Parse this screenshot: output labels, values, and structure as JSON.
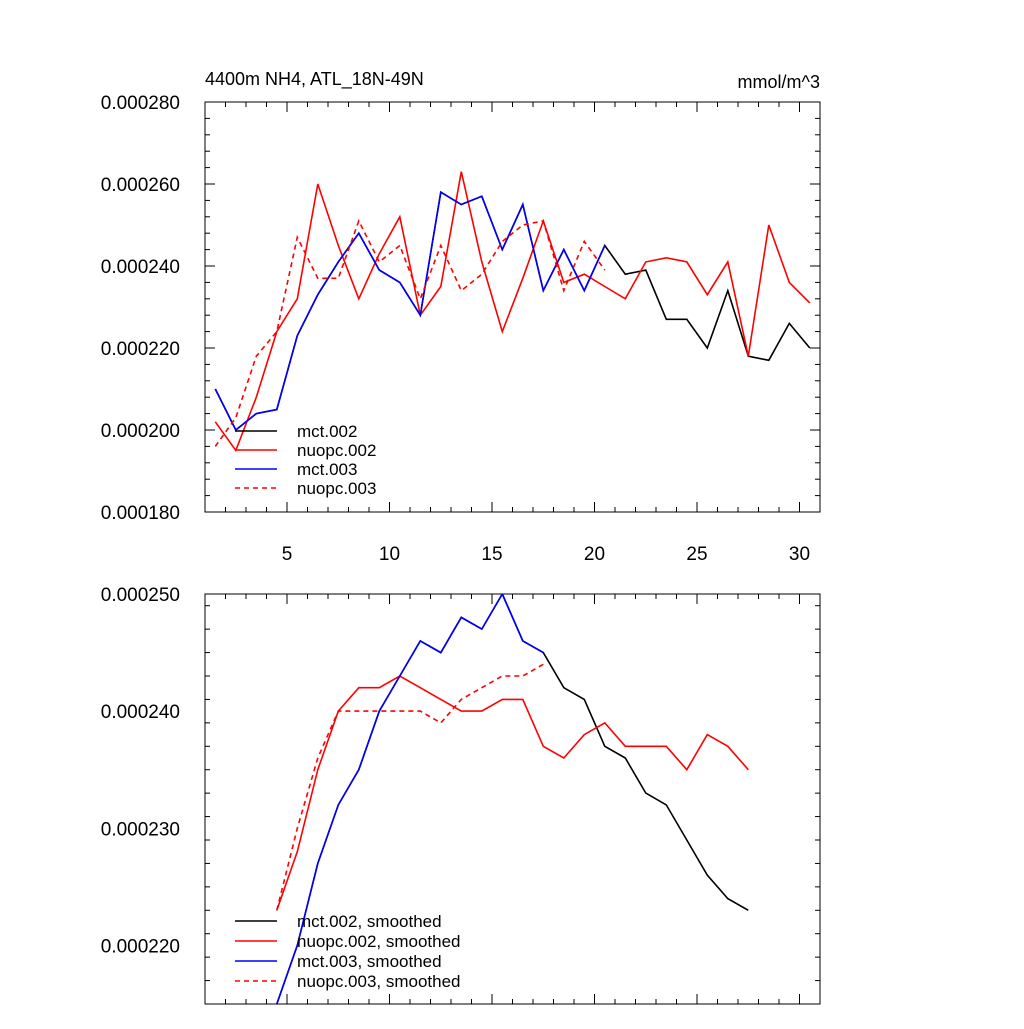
{
  "chart_data": [
    {
      "type": "line",
      "title": "4400m NH4, ATL_18N-49N",
      "units": "mmol/m^3",
      "xlim": [
        1,
        31
      ],
      "ylim": [
        0.00018,
        0.00028
      ],
      "xticks": [
        5,
        10,
        15,
        20,
        25,
        30
      ],
      "xtick_labels": [
        "5",
        "10",
        "15",
        "20",
        "25",
        "30"
      ],
      "yticks": [
        0.00018,
        0.0002,
        0.00022,
        0.00024,
        0.00026,
        0.00028
      ],
      "ytick_labels": [
        "0.000180",
        "0.000200",
        "0.000220",
        "0.000240",
        "0.000260",
        "0.000280"
      ],
      "legend": [
        "mct.002",
        "nuopc.002",
        "mct.003",
        "nuopc.003"
      ],
      "series": [
        {
          "name": "mct.002",
          "color": "#000000",
          "dash": "solid",
          "x": [
            1.5,
            2.5,
            3.5,
            4.5,
            5.5,
            6.5,
            7.5,
            8.5,
            9.5,
            10.5,
            11.5,
            12.5,
            13.5,
            14.5,
            15.5,
            16.5,
            17.5,
            18.5,
            19.5,
            20.5,
            21.5,
            22.5,
            23.5,
            24.5,
            25.5,
            26.5,
            27.5,
            28.5,
            29.5,
            30.5
          ],
          "values": [
            0.00021,
            0.0002,
            0.000204,
            0.000205,
            0.000223,
            0.000233,
            0.000241,
            0.000248,
            0.000239,
            0.000236,
            0.000228,
            0.000258,
            0.000255,
            0.000257,
            0.000244,
            0.000255,
            0.000234,
            0.000244,
            0.000234,
            0.000245,
            0.000238,
            0.000239,
            0.000227,
            0.000227,
            0.00022,
            0.000234,
            0.000218,
            0.000217,
            0.000226,
            0.00022
          ]
        },
        {
          "name": "nuopc.002",
          "color": "#ff0000",
          "dash": "solid",
          "x": [
            1.5,
            2.5,
            3.5,
            4.5,
            5.5,
            6.5,
            7.5,
            8.5,
            9.5,
            10.5,
            11.5,
            12.5,
            13.5,
            14.5,
            15.5,
            16.5,
            17.5,
            18.5,
            19.5,
            20.5,
            21.5,
            22.5,
            23.5,
            24.5,
            25.5,
            26.5,
            27.5,
            28.5,
            29.5,
            30.5
          ],
          "values": [
            0.000202,
            0.000195,
            0.000208,
            0.000224,
            0.000232,
            0.00026,
            0.000245,
            0.000232,
            0.000243,
            0.000252,
            0.000228,
            0.000235,
            0.000263,
            0.000241,
            0.000224,
            0.000237,
            0.000251,
            0.000236,
            0.000238,
            0.000235,
            0.000232,
            0.000241,
            0.000242,
            0.000241,
            0.000233,
            0.000241,
            0.000218,
            0.00025,
            0.000236,
            0.000231
          ]
        },
        {
          "name": "mct.003",
          "color": "#0000ff",
          "dash": "solid",
          "x": [
            1.5,
            2.5,
            3.5,
            4.5,
            5.5,
            6.5,
            7.5,
            8.5,
            9.5,
            10.5,
            11.5,
            12.5,
            13.5,
            14.5,
            15.5,
            16.5,
            17.5,
            18.5,
            19.5,
            20.5
          ],
          "values": [
            0.00021,
            0.0002,
            0.000204,
            0.000205,
            0.000223,
            0.000233,
            0.000241,
            0.000248,
            0.000239,
            0.000236,
            0.000228,
            0.000258,
            0.000255,
            0.000257,
            0.000244,
            0.000255,
            0.000234,
            0.000244,
            0.000234,
            0.000245
          ]
        },
        {
          "name": "nuopc.003",
          "color": "#ff0000",
          "dash": "dashed",
          "x": [
            1.5,
            2.5,
            3.5,
            4.5,
            5.5,
            6.5,
            7.5,
            8.5,
            9.5,
            10.5,
            11.5,
            12.5,
            13.5,
            14.5,
            15.5,
            16.5,
            17.5,
            18.5,
            19.5,
            20.5
          ],
          "values": [
            0.000196,
            0.000203,
            0.000218,
            0.000224,
            0.000247,
            0.000237,
            0.000237,
            0.000251,
            0.000241,
            0.000245,
            0.000232,
            0.000245,
            0.000234,
            0.000238,
            0.000246,
            0.00025,
            0.000251,
            0.000234,
            0.000246,
            0.000239
          ]
        }
      ]
    },
    {
      "type": "line",
      "title": "",
      "xlim": [
        1,
        31
      ],
      "ylim": [
        0.000215,
        0.00025
      ],
      "xticks": [
        5,
        10,
        15,
        20,
        25,
        30
      ],
      "xtick_labels": [],
      "yticks": [
        0.00022,
        0.00023,
        0.00024,
        0.00025
      ],
      "ytick_labels": [
        "0.000220",
        "0.000230",
        "0.000240",
        "0.000250"
      ],
      "legend": [
        "mct.002, smoothed",
        "nuopc.002, smoothed",
        "mct.003, smoothed",
        "nuopc.003, smoothed"
      ],
      "series": [
        {
          "name": "mct.002, smoothed",
          "color": "#000000",
          "dash": "solid",
          "x": [
            4.5,
            5.5,
            6.5,
            7.5,
            8.5,
            9.5,
            10.5,
            11.5,
            12.5,
            13.5,
            14.5,
            15.5,
            16.5,
            17.5,
            18.5,
            19.5,
            20.5,
            21.5,
            22.5,
            23.5,
            24.5,
            25.5,
            26.5,
            27.5
          ],
          "values": [
            0.000215,
            0.00022,
            0.000227,
            0.000232,
            0.000235,
            0.00024,
            0.000243,
            0.000246,
            0.000245,
            0.000248,
            0.000247,
            0.00025,
            0.000246,
            0.000245,
            0.000242,
            0.000241,
            0.000237,
            0.000236,
            0.000233,
            0.000232,
            0.000229,
            0.000226,
            0.000224,
            0.000223
          ]
        },
        {
          "name": "nuopc.002, smoothed",
          "color": "#ff0000",
          "dash": "solid",
          "x": [
            4.5,
            5.5,
            6.5,
            7.5,
            8.5,
            9.5,
            10.5,
            11.5,
            12.5,
            13.5,
            14.5,
            15.5,
            16.5,
            17.5,
            18.5,
            19.5,
            20.5,
            21.5,
            22.5,
            23.5,
            24.5,
            25.5,
            26.5,
            27.5
          ],
          "values": [
            0.000223,
            0.000228,
            0.000235,
            0.00024,
            0.000242,
            0.000242,
            0.000243,
            0.000242,
            0.000241,
            0.00024,
            0.00024,
            0.000241,
            0.000241,
            0.000237,
            0.000236,
            0.000238,
            0.000239,
            0.000237,
            0.000237,
            0.000237,
            0.000235,
            0.000238,
            0.000237,
            0.000235
          ]
        },
        {
          "name": "mct.003, smoothed",
          "color": "#0000ff",
          "dash": "solid",
          "x": [
            4.5,
            5.5,
            6.5,
            7.5,
            8.5,
            9.5,
            10.5,
            11.5,
            12.5,
            13.5,
            14.5,
            15.5,
            16.5,
            17.5
          ],
          "values": [
            0.000215,
            0.00022,
            0.000227,
            0.000232,
            0.000235,
            0.00024,
            0.000243,
            0.000246,
            0.000245,
            0.000248,
            0.000247,
            0.00025,
            0.000246,
            0.000245
          ]
        },
        {
          "name": "nuopc.003, smoothed",
          "color": "#ff0000",
          "dash": "dashed",
          "x": [
            4.5,
            5.5,
            6.5,
            7.5,
            8.5,
            9.5,
            10.5,
            11.5,
            12.5,
            13.5,
            14.5,
            15.5,
            16.5,
            17.5
          ],
          "values": [
            0.000223,
            0.00023,
            0.000236,
            0.00024,
            0.00024,
            0.00024,
            0.00024,
            0.00024,
            0.000239,
            0.000241,
            0.000242,
            0.000243,
            0.000243,
            0.000244
          ]
        }
      ]
    }
  ]
}
